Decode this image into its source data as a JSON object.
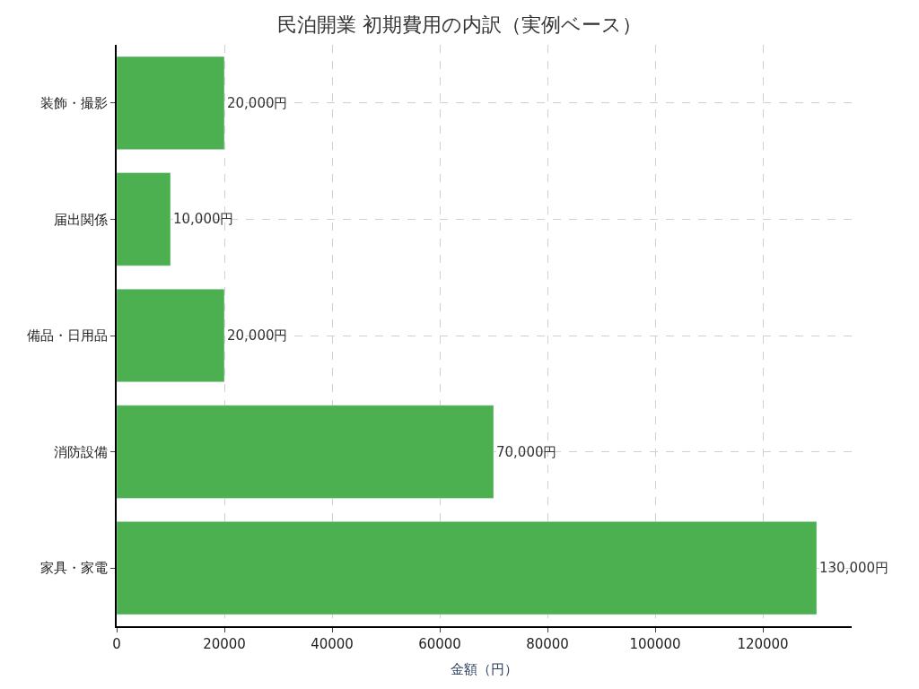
{
  "chart_data": {
    "type": "bar",
    "orientation": "horizontal",
    "title": "民泊開業 初期費用の内訳（実例ベース）",
    "xlabel": "金額（円）",
    "categories": [
      "装飾・撮影",
      "届出関係",
      "備品・日用品",
      "消防設備",
      "家具・家電"
    ],
    "values": [
      20000,
      10000,
      20000,
      70000,
      130000
    ],
    "value_labels": [
      "20,000円",
      "10,000円",
      "20,000円",
      "70,000円",
      "130,000円"
    ],
    "color": "#4caf50",
    "xlim": [
      0,
      136500
    ],
    "xticks": [
      0,
      20000,
      40000,
      60000,
      80000,
      100000,
      120000
    ],
    "grid": true
  }
}
